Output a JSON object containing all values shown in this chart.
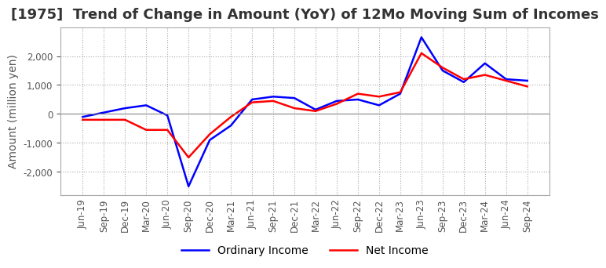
{
  "title": "[1975]  Trend of Change in Amount (YoY) of 12Mo Moving Sum of Incomes",
  "ylabel": "Amount (million yen)",
  "legend_labels": [
    "Ordinary Income",
    "Net Income"
  ],
  "line_colors": [
    "#0000FF",
    "#FF0000"
  ],
  "x_labels": [
    "Jun-19",
    "Sep-19",
    "Dec-19",
    "Mar-20",
    "Jun-20",
    "Sep-20",
    "Dec-20",
    "Mar-21",
    "Jun-21",
    "Sep-21",
    "Dec-21",
    "Mar-22",
    "Jun-22",
    "Sep-22",
    "Dec-22",
    "Mar-23",
    "Jun-23",
    "Sep-23",
    "Dec-23",
    "Mar-24",
    "Jun-24",
    "Sep-24"
  ],
  "ordinary_income": [
    -100,
    50,
    200,
    300,
    -50,
    -2500,
    -900,
    -400,
    500,
    600,
    550,
    150,
    450,
    500,
    300,
    700,
    2650,
    1500,
    1100,
    1750,
    1200,
    1150
  ],
  "net_income": [
    -200,
    -200,
    -200,
    -550,
    -550,
    -1500,
    -700,
    -100,
    400,
    450,
    200,
    100,
    350,
    700,
    600,
    750,
    2100,
    1600,
    1200,
    1350,
    1150,
    950
  ],
  "ylim": [
    -2800,
    3000
  ],
  "yticks": [
    -2000,
    -1000,
    0,
    1000,
    2000
  ],
  "background_color": "#FFFFFF",
  "grid_color": "#AAAAAA",
  "title_fontsize": 13,
  "label_fontsize": 10,
  "tick_fontsize": 8.5
}
